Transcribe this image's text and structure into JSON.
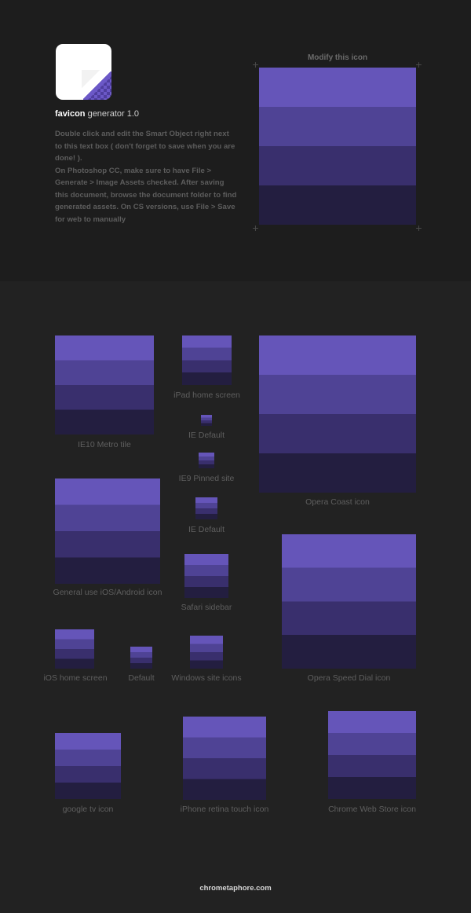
{
  "header": {
    "app_name_bold": "favicon",
    "app_name_rest": " generator 1.0",
    "description": [
      "Double click and edit the Smart Object right next to this text box ( don't forget to save when you are done! ).",
      "On Photoshop CC, make sure to have File > Generate > Image Assets  checked. After saving this document, browse the document folder to find generated assets. On CS versions, use File > Save for web to manually"
    ],
    "modify_label": "Modify this icon"
  },
  "icon_colors": [
    "#6555b9",
    "#4f4395",
    "#392f6d",
    "#231e40"
  ],
  "icons": {
    "ie10_metro_tile": "IE10 Metro tile",
    "ipad_home_screen": "iPad home screen",
    "ie_default_1": "IE Default",
    "ie9_pinned_site": "IE9 Pinned site",
    "ie_default_2": "IE Default",
    "opera_coast": "Opera Coast icon",
    "general_use": "General use iOS/Android icon",
    "safari_sidebar": "Safari sidebar",
    "opera_speed_dial": "Opera Speed Dial icon",
    "ios_home_screen": "iOS home screen",
    "default": "Default",
    "windows_site_icons": "Windows site icons",
    "google_tv": "google tv icon",
    "iphone_retina": "iPhone retina touch icon",
    "chrome_web_store": "Chrome Web Store icon"
  },
  "footer": "chrometaphore.com"
}
